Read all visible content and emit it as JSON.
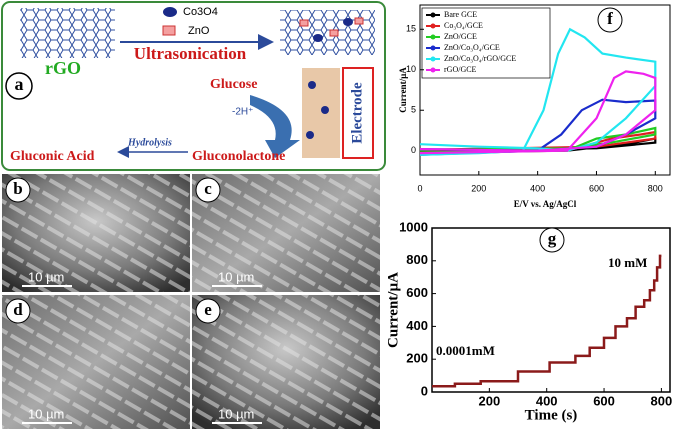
{
  "schematic": {
    "label": "a",
    "rgo": "rGO",
    "co3o4": "Co3O4",
    "zno": "ZnO",
    "ultrasonication": "Ultrasonication",
    "glucose": "Glucose",
    "protons": "-2H⁺",
    "electrode": "Electrode",
    "hydrolysis": "Hydrolysis",
    "gluconic_acid": "Gluconic Acid",
    "gluconolactone": "Gluconolactone"
  },
  "micrographs": [
    {
      "label": "b",
      "scale": "10 µm"
    },
    {
      "label": "c",
      "scale": "10 µm"
    },
    {
      "label": "d",
      "scale": "10 µm"
    },
    {
      "label": "e",
      "scale": "10 µm"
    }
  ],
  "chart_data": [
    {
      "type": "line",
      "label": "f",
      "xlabel": "E/V vs. Ag/AgCl",
      "ylabel": "Current/µA",
      "xlim": [
        0,
        850
      ],
      "ylim": [
        -3,
        18
      ],
      "xticks": [
        0,
        200,
        400,
        600,
        800
      ],
      "yticks": [
        0,
        5,
        10,
        15
      ],
      "legend": "top-left",
      "series": [
        {
          "name": "Bare GCE",
          "color": "#000000",
          "x": [
            0,
            500,
            700,
            800,
            800,
            600,
            0
          ],
          "values": [
            -0.1,
            0,
            0.8,
            1.5,
            1,
            0.3,
            0
          ]
        },
        {
          "name": "Co₃O₄/GCE",
          "color": "#e02020",
          "x": [
            0,
            500,
            650,
            750,
            800,
            800,
            600,
            0
          ],
          "values": [
            -0.2,
            0,
            1.5,
            2,
            2.3,
            1.5,
            0.5,
            0.1
          ]
        },
        {
          "name": "ZnO/GCE",
          "color": "#22cc22",
          "x": [
            0,
            500,
            600,
            700,
            800,
            800,
            650,
            500,
            0
          ],
          "values": [
            -0.2,
            0,
            1.5,
            2,
            2.8,
            2,
            1,
            0.3,
            0.1
          ]
        },
        {
          "name": "ZnO/Co₃O₄/GCE",
          "color": "#1a2ccc",
          "x": [
            0,
            400,
            480,
            550,
            620,
            700,
            800,
            800,
            700,
            600,
            400,
            0
          ],
          "values": [
            -0.5,
            0,
            2,
            5,
            6.3,
            6,
            6.2,
            4,
            2,
            0.5,
            0,
            0.2
          ]
        },
        {
          "name": "ZnO/Co₃O₄/rGO/GCE",
          "color": "#22e6f0",
          "x": [
            0,
            200,
            350,
            420,
            470,
            510,
            560,
            620,
            700,
            800,
            800,
            700,
            600,
            500,
            400,
            200,
            0
          ],
          "values": [
            -0.5,
            -0.3,
            0,
            5,
            12,
            15,
            14,
            12,
            11.5,
            11,
            8,
            4,
            1,
            0,
            0.3,
            0.5,
            0.8
          ]
        },
        {
          "name": "rGO/GCE",
          "color": "#ee22ee",
          "x": [
            0,
            500,
            600,
            660,
            700,
            760,
            800,
            800,
            700,
            600,
            400,
            0
          ],
          "values": [
            -0.3,
            0,
            4,
            9,
            9.8,
            9.5,
            9,
            5,
            2,
            0.5,
            0,
            0.2
          ]
        }
      ]
    },
    {
      "type": "line",
      "label": "g",
      "xlabel": "Time (s)",
      "ylabel": "Current/µA",
      "xlim": [
        0,
        830
      ],
      "ylim": [
        0,
        1000
      ],
      "xticks": [
        200,
        400,
        600,
        800
      ],
      "yticks": [
        0,
        200,
        400,
        600,
        800,
        1000
      ],
      "annotations": [
        "0.0001mM",
        "10 mM"
      ],
      "series": [
        {
          "color": "#8b1a1a",
          "x": [
            0,
            80,
            80,
            170,
            170,
            300,
            300,
            410,
            410,
            500,
            500,
            550,
            550,
            600,
            600,
            640,
            640,
            680,
            680,
            710,
            710,
            740,
            740,
            760,
            760,
            775,
            775,
            785,
            785,
            795,
            795,
            800
          ],
          "values": [
            35,
            35,
            50,
            50,
            65,
            65,
            125,
            125,
            180,
            180,
            220,
            220,
            270,
            270,
            330,
            330,
            400,
            400,
            450,
            450,
            520,
            520,
            560,
            560,
            620,
            620,
            680,
            680,
            760,
            760,
            830,
            830
          ]
        }
      ]
    }
  ]
}
